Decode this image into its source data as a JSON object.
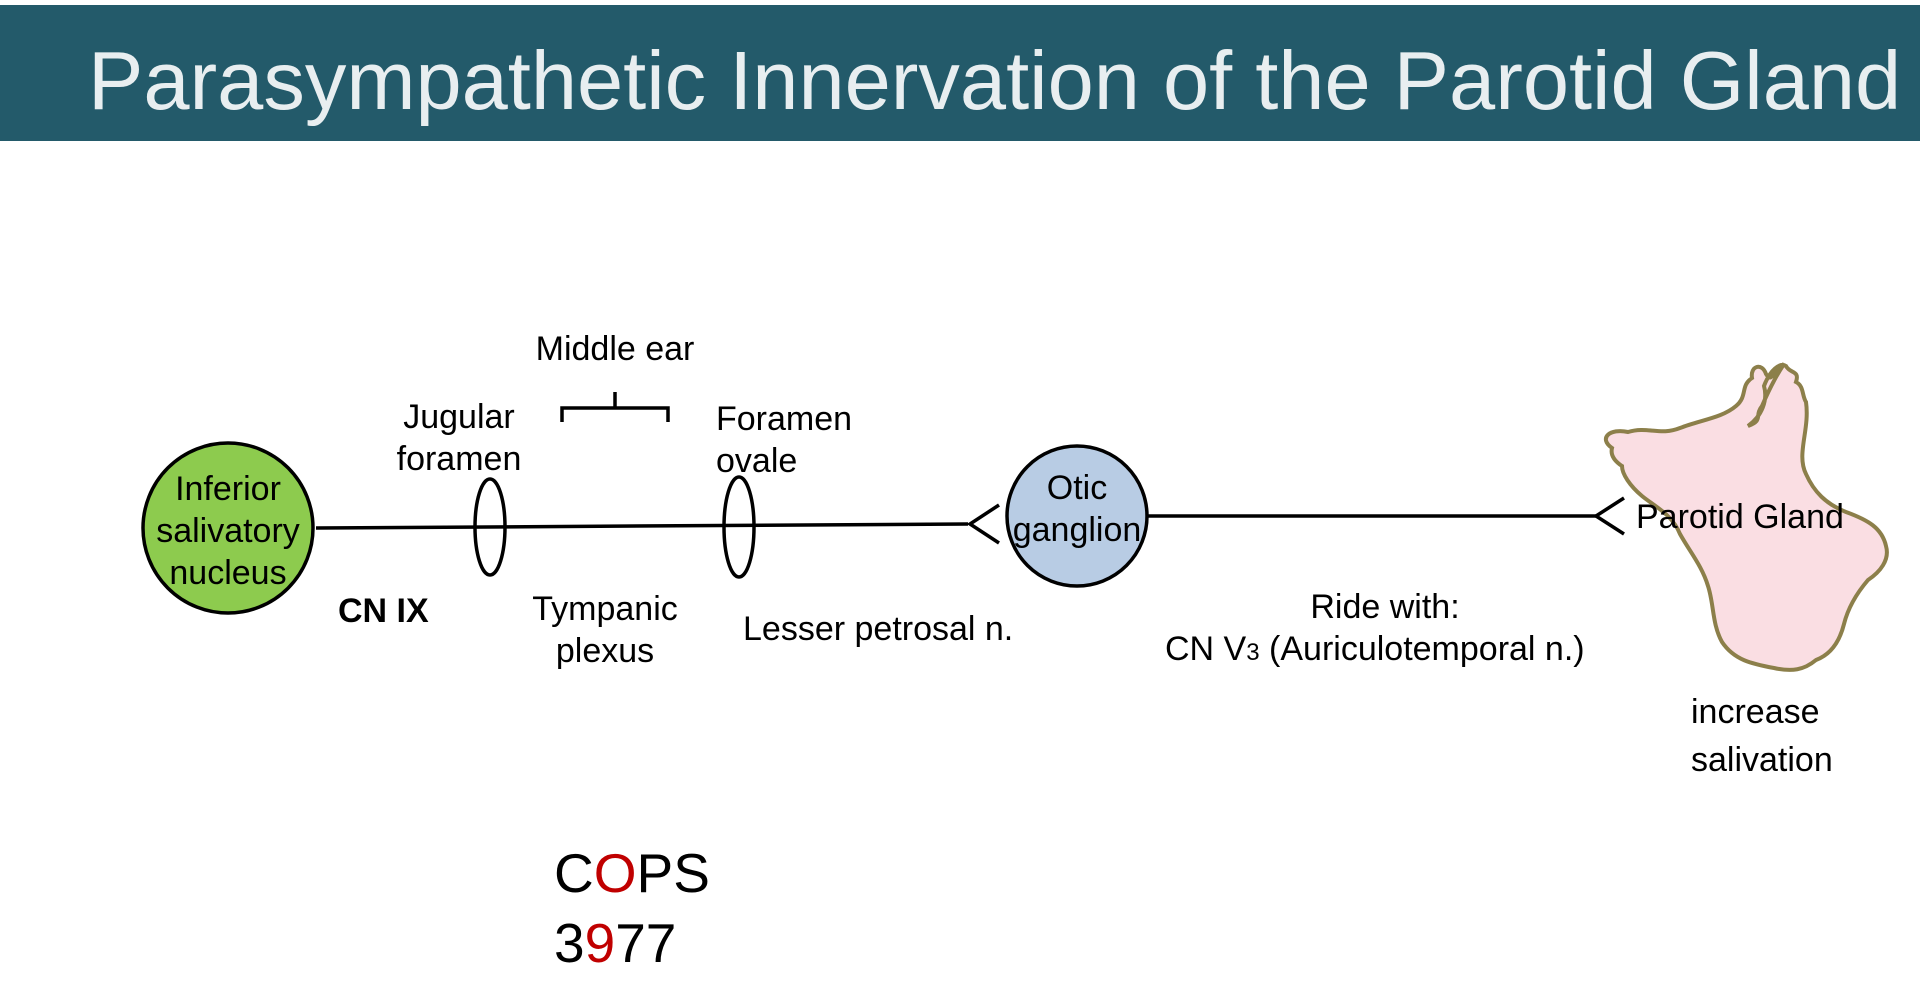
{
  "title": "Parasympathetic Innervation of the Parotid Gland",
  "colors": {
    "title_bar": "#235a6a",
    "title_text": "#e8eef0",
    "nucleus_fill": "#8dcb4e",
    "ganglion_fill": "#b8cce4",
    "gland_fill": "#fadee3",
    "gland_outline": "#8c7f4a",
    "mnemonic_highlight": "#c00000"
  },
  "nodes": {
    "nucleus": [
      "Inferior",
      "salivatory",
      "nucleus"
    ],
    "ganglion": [
      "Otic",
      "ganglion"
    ],
    "gland": "Parotid Gland"
  },
  "labels": {
    "middle_ear": "Middle ear",
    "jugular_foramen": [
      "Jugular",
      "foramen"
    ],
    "foramen_ovale": [
      "Foramen",
      "ovale"
    ],
    "cn_ix": "CN IX",
    "tympanic_plexus": [
      "Tympanic",
      "plexus"
    ],
    "lesser_petrosal": "Lesser petrosal n.",
    "ride_with": "Ride with:",
    "cn_v3_prefix": "CN V",
    "cn_v3_sub": "3",
    "cn_v3_suffix": " (Auriculotemporal n.)",
    "effect": [
      "increase",
      "salivation"
    ]
  },
  "mnemonic": {
    "row1": [
      "C",
      "O",
      "PS"
    ],
    "row2": [
      "3",
      "9",
      "77"
    ]
  },
  "icons": [
    "foramen-ellipse-icon",
    "synapse-chevron-icon",
    "bracket-icon",
    "gland-shape-icon"
  ]
}
